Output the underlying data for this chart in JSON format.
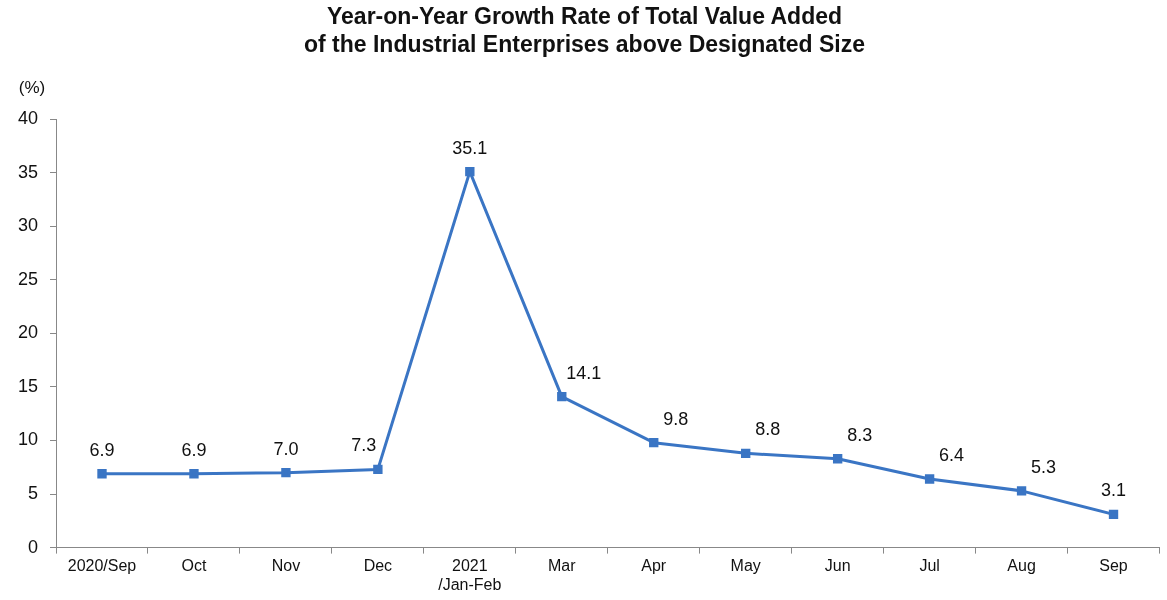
{
  "chart_data": {
    "type": "line",
    "title": "Year-on-Year Growth Rate of Total Value Added\nof the Industrial Enterprises above Designated Size",
    "ylabel": "(%)",
    "categories": [
      "2020/Sep",
      "Oct",
      "Nov",
      "Dec",
      "2021\n/Jan-Feb",
      "Mar",
      "Apr",
      "May",
      "Jun",
      "Jul",
      "Aug",
      "Sep"
    ],
    "series": [
      {
        "color": "#3a75c4",
        "values": [
          6.9,
          6.9,
          7.0,
          7.3,
          35.1,
          14.1,
          9.8,
          8.8,
          8.3,
          6.4,
          5.3,
          3.1
        ],
        "value_labels": [
          "6.9",
          "6.9",
          "7.0",
          "7.3",
          "35.1",
          "14.1",
          "9.8",
          "8.8",
          "8.3",
          "6.4",
          "5.3",
          "3.1"
        ]
      }
    ],
    "ylim": [
      0,
      40
    ],
    "yticks": [
      0,
      5,
      10,
      15,
      20,
      25,
      30,
      35,
      40
    ],
    "grid": false,
    "legend": false,
    "marker": "square",
    "line_style": "solid"
  }
}
